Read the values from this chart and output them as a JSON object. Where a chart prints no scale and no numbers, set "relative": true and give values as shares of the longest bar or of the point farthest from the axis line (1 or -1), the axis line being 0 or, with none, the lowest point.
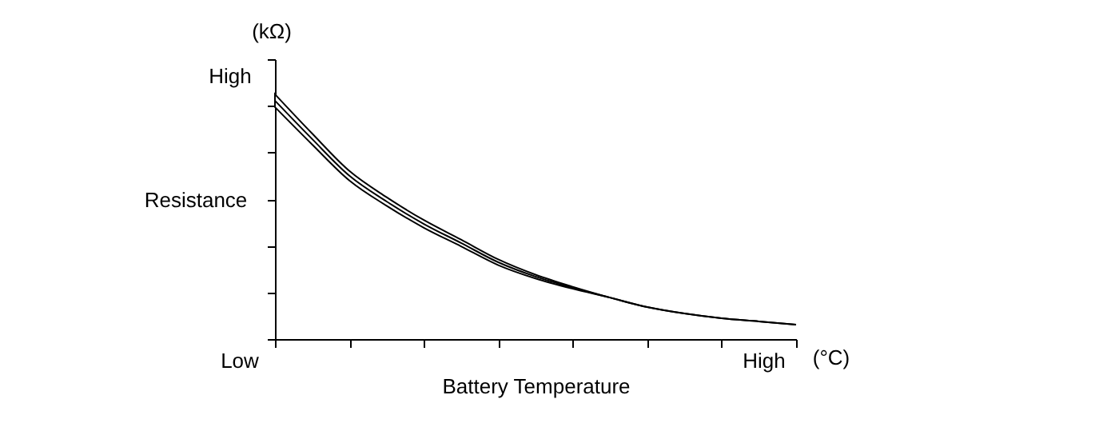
{
  "chart_data": {
    "type": "line",
    "relative": true,
    "xlabel": "Battery Temperature",
    "ylabel": "Resistance",
    "annotations": [
      "(kΩ)",
      "High",
      "Low",
      "High",
      "(°C)"
    ],
    "categories": [
      null,
      null,
      null,
      null,
      null,
      null,
      null,
      null,
      null,
      null,
      null,
      null,
      null,
      null,
      null
    ],
    "series": [
      {
        "color": "#000000",
        "values": [
          1,
          0.839,
          0.685,
          0.577,
          0.483,
          0.403,
          0.322,
          0.262,
          0.215,
          0.174,
          0.134,
          0.107,
          0.087,
          0.074,
          0.06
        ],
        "upper": [
          1.027,
          0.862,
          0.705,
          0.595,
          0.499,
          0.417,
          0.334,
          0.27,
          0.219,
          0.174,
          0.134,
          0.107,
          0.087,
          0.074,
          0.06
        ],
        "lower": [
          0.973,
          0.816,
          0.665,
          0.559,
          0.467,
          0.389,
          0.31,
          0.254,
          0.211,
          0.174,
          0.134,
          0.107,
          0.087,
          0.074,
          0.06
        ]
      }
    ],
    "grid": false,
    "marker": "none",
    "line_style": "solid"
  }
}
